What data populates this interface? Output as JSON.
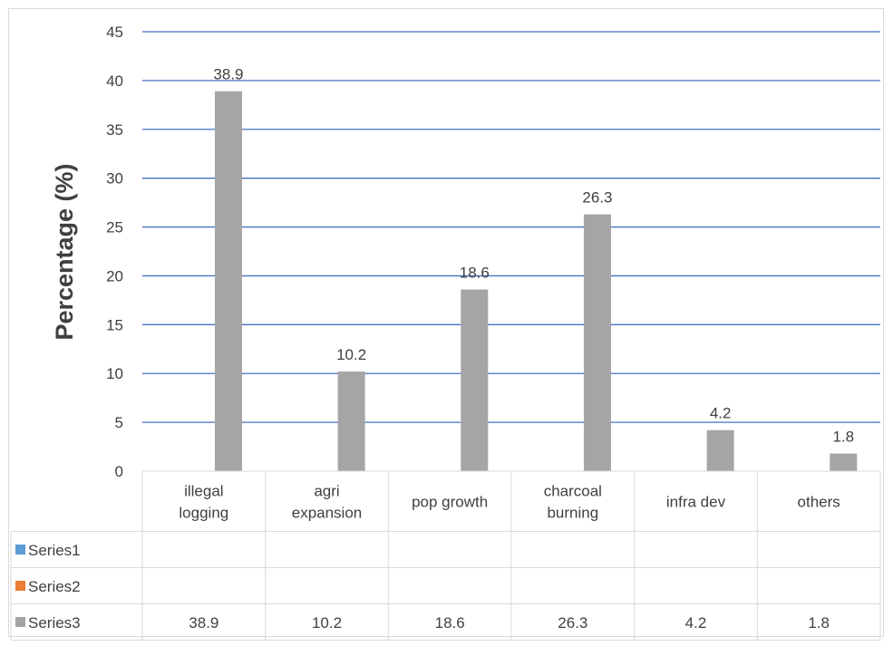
{
  "chart_data": {
    "type": "bar",
    "title": "",
    "xlabel": "",
    "ylabel": "Percentage  (%)",
    "ylim": [
      0,
      45
    ],
    "yticks": [
      0,
      5,
      10,
      15,
      20,
      25,
      30,
      35,
      40,
      45
    ],
    "grid": true,
    "categories": [
      [
        "illegal",
        "logging"
      ],
      [
        "agri",
        "expansion"
      ],
      [
        "pop growth"
      ],
      [
        "charcoal",
        "burning"
      ],
      [
        "infra dev"
      ],
      [
        "others"
      ]
    ],
    "series": [
      {
        "name": "Series1",
        "color": "#5B9BD5",
        "values": [
          null,
          null,
          null,
          null,
          null,
          null
        ]
      },
      {
        "name": "Series2",
        "color": "#ED7D31",
        "values": [
          null,
          null,
          null,
          null,
          null,
          null
        ]
      },
      {
        "name": "Series3",
        "color": "#A5A5A5",
        "values": [
          38.9,
          10.2,
          18.6,
          26.3,
          4.2,
          1.8
        ]
      }
    ],
    "data_labels": [
      "38.9",
      "10.2",
      "18.6",
      "26.3",
      "4.2",
      "1.8"
    ],
    "data_table": {
      "rows": [
        {
          "name": "Series1",
          "cells": [
            "",
            "",
            "",
            "",
            "",
            ""
          ]
        },
        {
          "name": "Series2",
          "cells": [
            "",
            "",
            "",
            "",
            "",
            ""
          ]
        },
        {
          "name": "Series3",
          "cells": [
            "38.9",
            "10.2",
            "18.6",
            "26.3",
            "4.2",
            "1.8"
          ]
        }
      ]
    },
    "colors": {
      "grid": "#4472C4",
      "table_border": "#D9D9D9",
      "text": "#404040"
    }
  }
}
